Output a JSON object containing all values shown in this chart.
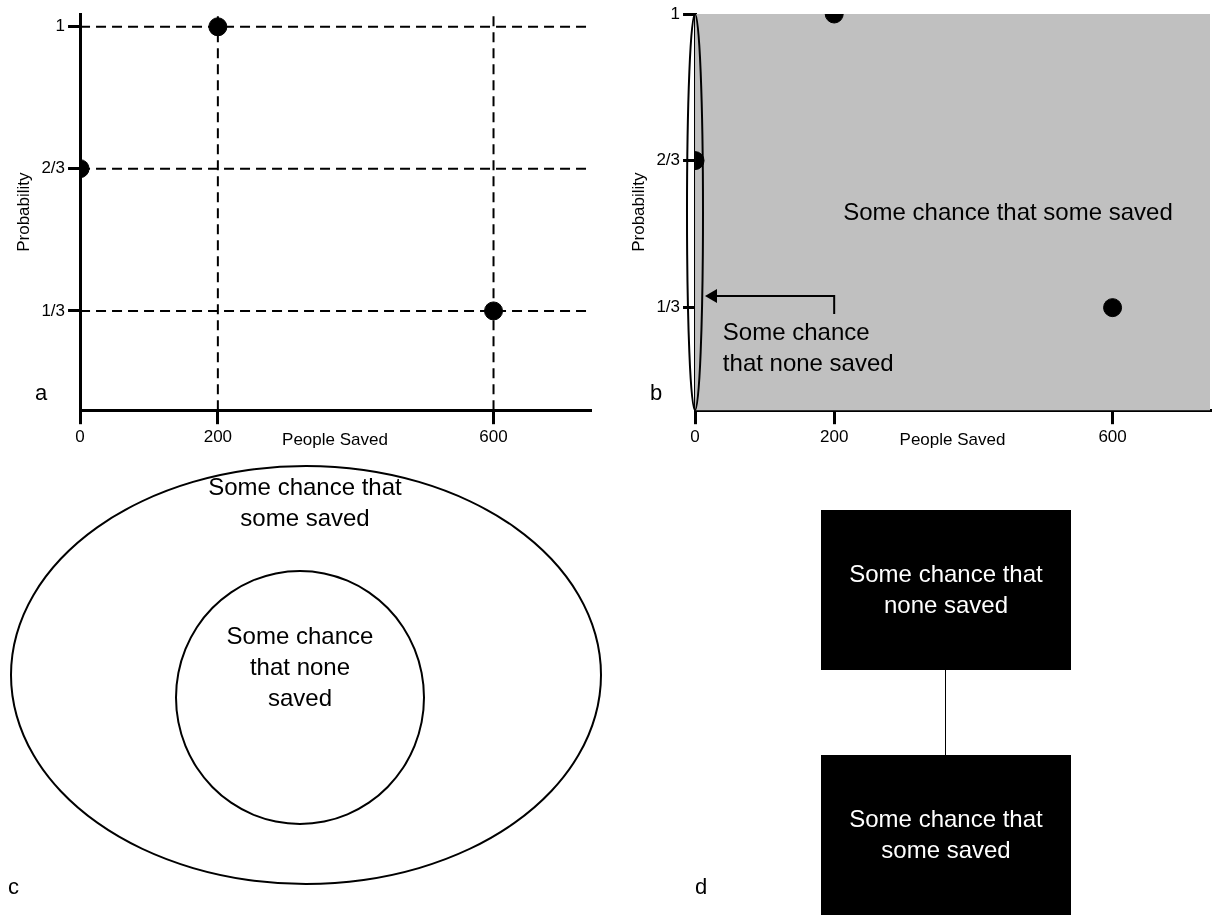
{
  "chart_data": [
    {
      "type": "scatter",
      "xlabel": "People Saved",
      "ylabel": "Probability",
      "series": [
        {
          "color": "#000000",
          "x": [
            0,
            200,
            600
          ],
          "values": [
            0.667,
            1,
            0.333
          ]
        }
      ],
      "xlim": [
        0,
        740
      ],
      "ylim": [
        0.1,
        1.03
      ],
      "xticks": [
        0,
        200,
        600
      ],
      "yticks": [
        {
          "value": 0.333,
          "label": "1/3"
        },
        {
          "value": 0.667,
          "label": "2/3"
        },
        {
          "value": 1,
          "label": "1"
        }
      ],
      "ref_lines": [
        {
          "axis": "y",
          "value": 1,
          "line_style": "dashed"
        },
        {
          "axis": "y",
          "value": 0.667,
          "line_style": "dashed"
        },
        {
          "axis": "y",
          "value": 0.333,
          "line_style": "dashed"
        },
        {
          "axis": "x",
          "value": 200,
          "line_style": "dashed"
        },
        {
          "axis": "x",
          "value": 600,
          "line_style": "dashed"
        }
      ],
      "grid": false,
      "legend": false,
      "marker": "circle",
      "annotations": [
        "a"
      ]
    },
    {
      "type": "scatter",
      "xlabel": "People Saved",
      "ylabel": "Probability",
      "series": [
        {
          "color": "#000000",
          "x": [
            0,
            200,
            600
          ],
          "values": [
            0.667,
            1,
            0.333
          ]
        }
      ],
      "xlim": [
        0,
        740
      ],
      "ylim": [
        0.1,
        1
      ],
      "xticks": [
        0,
        200,
        600
      ],
      "yticks": [
        {
          "value": 0.333,
          "label": "1/3"
        },
        {
          "value": 0.667,
          "label": "2/3"
        },
        {
          "value": 1,
          "label": "1"
        }
      ],
      "bands": [
        {
          "axis": "x",
          "from": 0,
          "to": 740,
          "color": "#c0c0c0"
        }
      ],
      "grid": false,
      "legend": false,
      "marker": "circle",
      "annotations": [
        "Some chance that some saved",
        "Some chance that none saved",
        "b"
      ]
    },
    {
      "type": "other",
      "annotations": [
        "Some chance that some saved",
        "Some chance that none saved",
        "c"
      ]
    },
    {
      "type": "other",
      "annotations": [
        "Some chance that none saved",
        "Some chance that some saved",
        "d"
      ]
    }
  ]
}
